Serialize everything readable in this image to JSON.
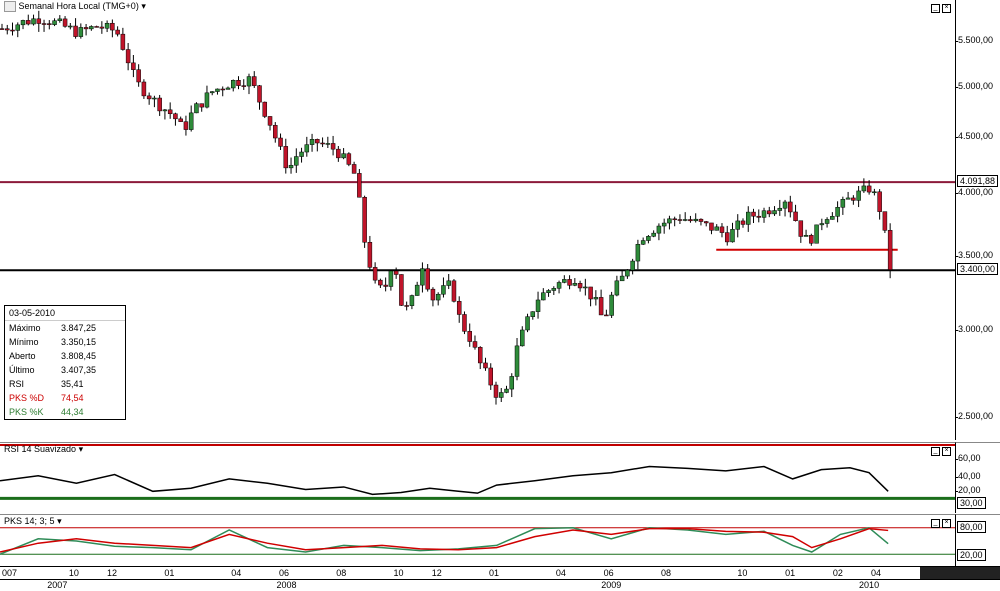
{
  "chart": {
    "title": "Semanal Hora Local (TMG+0)",
    "symbol_icon": "symbol-badge-icon"
  },
  "price_tags": {
    "resistance": "4.091,88",
    "support": "3.400,00"
  },
  "price_axis": [
    "5.500,00",
    "5.000,00",
    "4.500,00",
    "4.000,00",
    "3.500,00",
    "3.000,00",
    "2.500,00"
  ],
  "info": {
    "date": "03-05-2010",
    "rows": [
      {
        "k": "Máximo",
        "v": "3.847,25",
        "color": "#000000"
      },
      {
        "k": "Mínimo",
        "v": "3.350,15",
        "color": "#000000"
      },
      {
        "k": "Aberto",
        "v": "3.808,45",
        "color": "#000000"
      },
      {
        "k": "Último",
        "v": "3.407,35",
        "color": "#000000"
      },
      {
        "k": "RSI",
        "v": "35,41",
        "color": "#000000"
      },
      {
        "k": "PKS %D",
        "v": "74,54",
        "color": "#cc0000"
      },
      {
        "k": "PKS %K",
        "v": "44,34",
        "color": "#2e7d32"
      }
    ]
  },
  "rsi": {
    "title": "RSI 14 Suavizado",
    "axis": [
      "60,00",
      "40,00",
      "20,00"
    ],
    "tag": "30,00"
  },
  "pks": {
    "title": "PKS 14; 3; 5",
    "tag_top": "80,00",
    "tag_bottom": "20,00"
  },
  "x_axis": {
    "months": [
      {
        "label": "007",
        "xp": 0
      },
      {
        "label": "10",
        "xp": 7
      },
      {
        "label": "12",
        "xp": 11
      },
      {
        "label": "01",
        "xp": 17
      },
      {
        "label": "04",
        "xp": 24
      },
      {
        "label": "06",
        "xp": 29
      },
      {
        "label": "08",
        "xp": 35
      },
      {
        "label": "10",
        "xp": 41
      },
      {
        "label": "12",
        "xp": 45
      },
      {
        "label": "01",
        "xp": 51
      },
      {
        "label": "04",
        "xp": 58
      },
      {
        "label": "06",
        "xp": 63
      },
      {
        "label": "08",
        "xp": 69
      },
      {
        "label": "10",
        "xp": 77
      },
      {
        "label": "01",
        "xp": 82
      },
      {
        "label": "02",
        "xp": 87
      },
      {
        "label": "04",
        "xp": 91
      }
    ],
    "years": [
      {
        "label": "2007",
        "xp": 6
      },
      {
        "label": "2008",
        "xp": 30
      },
      {
        "label": "2009",
        "xp": 64
      },
      {
        "label": "2010",
        "xp": 91
      }
    ]
  },
  "chart_data": {
    "type": "candlestick",
    "interval": "weekly",
    "period": "2007-2010",
    "price_scale": "log",
    "ylim": [
      2400,
      5900
    ],
    "horizontal_lines": [
      {
        "value": 4091.88,
        "color": "#8b1a3a"
      },
      {
        "value": 3400.0,
        "color": "#000000"
      },
      {
        "value": 3550,
        "color": "#d00000",
        "x_from": 0.75,
        "x_to": 0.94
      }
    ],
    "close_path": [
      [
        0.0,
        5650
      ],
      [
        0.02,
        5720
      ],
      [
        0.04,
        5780
      ],
      [
        0.06,
        5700
      ],
      [
        0.08,
        5600
      ],
      [
        0.1,
        5680
      ],
      [
        0.12,
        5620
      ],
      [
        0.13,
        5350
      ],
      [
        0.14,
        5050
      ],
      [
        0.16,
        4850
      ],
      [
        0.18,
        4700
      ],
      [
        0.19,
        4560
      ],
      [
        0.2,
        4750
      ],
      [
        0.22,
        4950
      ],
      [
        0.24,
        5050
      ],
      [
        0.26,
        5080
      ],
      [
        0.27,
        4850
      ],
      [
        0.28,
        4650
      ],
      [
        0.29,
        4400
      ],
      [
        0.3,
        4200
      ],
      [
        0.31,
        4350
      ],
      [
        0.33,
        4450
      ],
      [
        0.35,
        4380
      ],
      [
        0.37,
        4150
      ],
      [
        0.38,
        3600
      ],
      [
        0.39,
        3300
      ],
      [
        0.4,
        3250
      ],
      [
        0.41,
        3500
      ],
      [
        0.42,
        3100
      ],
      [
        0.43,
        3200
      ],
      [
        0.44,
        3450
      ],
      [
        0.45,
        3200
      ],
      [
        0.47,
        3300
      ],
      [
        0.48,
        3050
      ],
      [
        0.49,
        2950
      ],
      [
        0.5,
        2800
      ],
      [
        0.51,
        2700
      ],
      [
        0.52,
        2600
      ],
      [
        0.53,
        2650
      ],
      [
        0.54,
        2900
      ],
      [
        0.55,
        3050
      ],
      [
        0.56,
        3200
      ],
      [
        0.58,
        3300
      ],
      [
        0.6,
        3350
      ],
      [
        0.62,
        3200
      ],
      [
        0.63,
        3050
      ],
      [
        0.64,
        3250
      ],
      [
        0.65,
        3350
      ],
      [
        0.66,
        3500
      ],
      [
        0.67,
        3650
      ],
      [
        0.69,
        3750
      ],
      [
        0.71,
        3800
      ],
      [
        0.73,
        3750
      ],
      [
        0.75,
        3700
      ],
      [
        0.76,
        3650
      ],
      [
        0.78,
        3800
      ],
      [
        0.8,
        3850
      ],
      [
        0.82,
        3950
      ],
      [
        0.83,
        3800
      ],
      [
        0.84,
        3620
      ],
      [
        0.85,
        3650
      ],
      [
        0.86,
        3800
      ],
      [
        0.88,
        3900
      ],
      [
        0.89,
        3970
      ],
      [
        0.9,
        4000
      ],
      [
        0.91,
        4050
      ],
      [
        0.92,
        3850
      ],
      [
        0.93,
        3420
      ]
    ],
    "rsi_path": [
      [
        0.0,
        52
      ],
      [
        0.04,
        60
      ],
      [
        0.08,
        48
      ],
      [
        0.12,
        62
      ],
      [
        0.16,
        35
      ],
      [
        0.2,
        40
      ],
      [
        0.24,
        55
      ],
      [
        0.28,
        48
      ],
      [
        0.32,
        38
      ],
      [
        0.36,
        42
      ],
      [
        0.39,
        30
      ],
      [
        0.42,
        33
      ],
      [
        0.45,
        40
      ],
      [
        0.48,
        35
      ],
      [
        0.5,
        32
      ],
      [
        0.52,
        45
      ],
      [
        0.56,
        52
      ],
      [
        0.6,
        60
      ],
      [
        0.64,
        65
      ],
      [
        0.68,
        75
      ],
      [
        0.72,
        72
      ],
      [
        0.76,
        68
      ],
      [
        0.8,
        75
      ],
      [
        0.83,
        55
      ],
      [
        0.86,
        70
      ],
      [
        0.89,
        73
      ],
      [
        0.91,
        65
      ],
      [
        0.93,
        35
      ]
    ],
    "pks_d": [
      [
        0.0,
        25
      ],
      [
        0.04,
        45
      ],
      [
        0.08,
        55
      ],
      [
        0.12,
        45
      ],
      [
        0.16,
        40
      ],
      [
        0.2,
        35
      ],
      [
        0.24,
        65
      ],
      [
        0.28,
        45
      ],
      [
        0.32,
        30
      ],
      [
        0.36,
        35
      ],
      [
        0.4,
        40
      ],
      [
        0.44,
        32
      ],
      [
        0.48,
        30
      ],
      [
        0.52,
        35
      ],
      [
        0.56,
        60
      ],
      [
        0.6,
        75
      ],
      [
        0.64,
        65
      ],
      [
        0.68,
        78
      ],
      [
        0.72,
        78
      ],
      [
        0.76,
        72
      ],
      [
        0.8,
        70
      ],
      [
        0.83,
        60
      ],
      [
        0.85,
        35
      ],
      [
        0.88,
        55
      ],
      [
        0.91,
        78
      ],
      [
        0.93,
        74
      ]
    ],
    "pks_k": [
      [
        0.0,
        20
      ],
      [
        0.04,
        55
      ],
      [
        0.08,
        50
      ],
      [
        0.12,
        38
      ],
      [
        0.16,
        35
      ],
      [
        0.2,
        30
      ],
      [
        0.24,
        75
      ],
      [
        0.28,
        35
      ],
      [
        0.32,
        25
      ],
      [
        0.36,
        40
      ],
      [
        0.4,
        35
      ],
      [
        0.44,
        28
      ],
      [
        0.48,
        32
      ],
      [
        0.52,
        40
      ],
      [
        0.56,
        78
      ],
      [
        0.6,
        80
      ],
      [
        0.64,
        55
      ],
      [
        0.68,
        80
      ],
      [
        0.72,
        75
      ],
      [
        0.76,
        65
      ],
      [
        0.8,
        72
      ],
      [
        0.83,
        40
      ],
      [
        0.85,
        25
      ],
      [
        0.88,
        65
      ],
      [
        0.91,
        80
      ],
      [
        0.93,
        44
      ]
    ]
  }
}
